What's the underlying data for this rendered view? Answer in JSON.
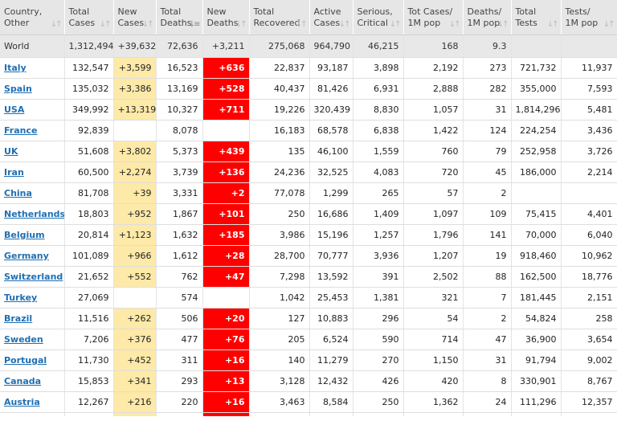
{
  "headers": [
    {
      "line1": "Country,",
      "line2": "Other"
    },
    {
      "line1": "Total",
      "line2": "Cases"
    },
    {
      "line1": "New",
      "line2": "Cases"
    },
    {
      "line1": "Total",
      "line2": "Deaths"
    },
    {
      "line1": "New",
      "line2": "Deaths"
    },
    {
      "line1": "Total",
      "line2": "Recovered"
    },
    {
      "line1": "Active",
      "line2": "Cases"
    },
    {
      "line1": "Serious,",
      "line2": "Critical"
    },
    {
      "line1": "Tot Cases/",
      "line2": "1M pop"
    },
    {
      "line1": "Deaths/",
      "line2": "1M pop"
    },
    {
      "line1": "Total",
      "line2": "Tests"
    },
    {
      "line1": "Tests/",
      "line2": "1M pop"
    }
  ],
  "sort_active_column": 3,
  "world": [
    "World",
    "1,312,494",
    "+39,632",
    "72,636",
    "+3,211",
    "275,068",
    "964,790",
    "46,215",
    "168",
    "9.3",
    "",
    ""
  ],
  "rows": [
    [
      "Italy",
      "132,547",
      "+3,599",
      "16,523",
      "+636",
      "22,837",
      "93,187",
      "3,898",
      "2,192",
      "273",
      "721,732",
      "11,937"
    ],
    [
      "Spain",
      "135,032",
      "+3,386",
      "13,169",
      "+528",
      "40,437",
      "81,426",
      "6,931",
      "2,888",
      "282",
      "355,000",
      "7,593"
    ],
    [
      "USA",
      "349,992",
      "+13,319",
      "10,327",
      "+711",
      "19,226",
      "320,439",
      "8,830",
      "1,057",
      "31",
      "1,814,296",
      "5,481"
    ],
    [
      "France",
      "92,839",
      "",
      "8,078",
      "",
      "16,183",
      "68,578",
      "6,838",
      "1,422",
      "124",
      "224,254",
      "3,436"
    ],
    [
      "UK",
      "51,608",
      "+3,802",
      "5,373",
      "+439",
      "135",
      "46,100",
      "1,559",
      "760",
      "79",
      "252,958",
      "3,726"
    ],
    [
      "Iran",
      "60,500",
      "+2,274",
      "3,739",
      "+136",
      "24,236",
      "32,525",
      "4,083",
      "720",
      "45",
      "186,000",
      "2,214"
    ],
    [
      "China",
      "81,708",
      "+39",
      "3,331",
      "+2",
      "77,078",
      "1,299",
      "265",
      "57",
      "2",
      "",
      ""
    ],
    [
      "Netherlands",
      "18,803",
      "+952",
      "1,867",
      "+101",
      "250",
      "16,686",
      "1,409",
      "1,097",
      "109",
      "75,415",
      "4,401"
    ],
    [
      "Belgium",
      "20,814",
      "+1,123",
      "1,632",
      "+185",
      "3,986",
      "15,196",
      "1,257",
      "1,796",
      "141",
      "70,000",
      "6,040"
    ],
    [
      "Germany",
      "101,089",
      "+966",
      "1,612",
      "+28",
      "28,700",
      "70,777",
      "3,936",
      "1,207",
      "19",
      "918,460",
      "10,962"
    ],
    [
      "Switzerland",
      "21,652",
      "+552",
      "762",
      "+47",
      "7,298",
      "13,592",
      "391",
      "2,502",
      "88",
      "162,500",
      "18,776"
    ],
    [
      "Turkey",
      "27,069",
      "",
      "574",
      "",
      "1,042",
      "25,453",
      "1,381",
      "321",
      "7",
      "181,445",
      "2,151"
    ],
    [
      "Brazil",
      "11,516",
      "+262",
      "506",
      "+20",
      "127",
      "10,883",
      "296",
      "54",
      "2",
      "54,824",
      "258"
    ],
    [
      "Sweden",
      "7,206",
      "+376",
      "477",
      "+76",
      "205",
      "6,524",
      "590",
      "714",
      "47",
      "36,900",
      "3,654"
    ],
    [
      "Portugal",
      "11,730",
      "+452",
      "311",
      "+16",
      "140",
      "11,279",
      "270",
      "1,150",
      "31",
      "91,794",
      "9,002"
    ],
    [
      "Canada",
      "15,853",
      "+341",
      "293",
      "+13",
      "3,128",
      "12,432",
      "426",
      "420",
      "8",
      "330,901",
      "8,767"
    ],
    [
      "Austria",
      "12,267",
      "+216",
      "220",
      "+16",
      "3,463",
      "8,584",
      "250",
      "1,362",
      "24",
      "111,296",
      "12,357"
    ]
  ],
  "colors": {
    "new_cases_bg": "#fde9a8",
    "new_deaths_bg": "#ff0000",
    "link": "#1f6fb3",
    "header_bg": "#e6e6e6"
  }
}
